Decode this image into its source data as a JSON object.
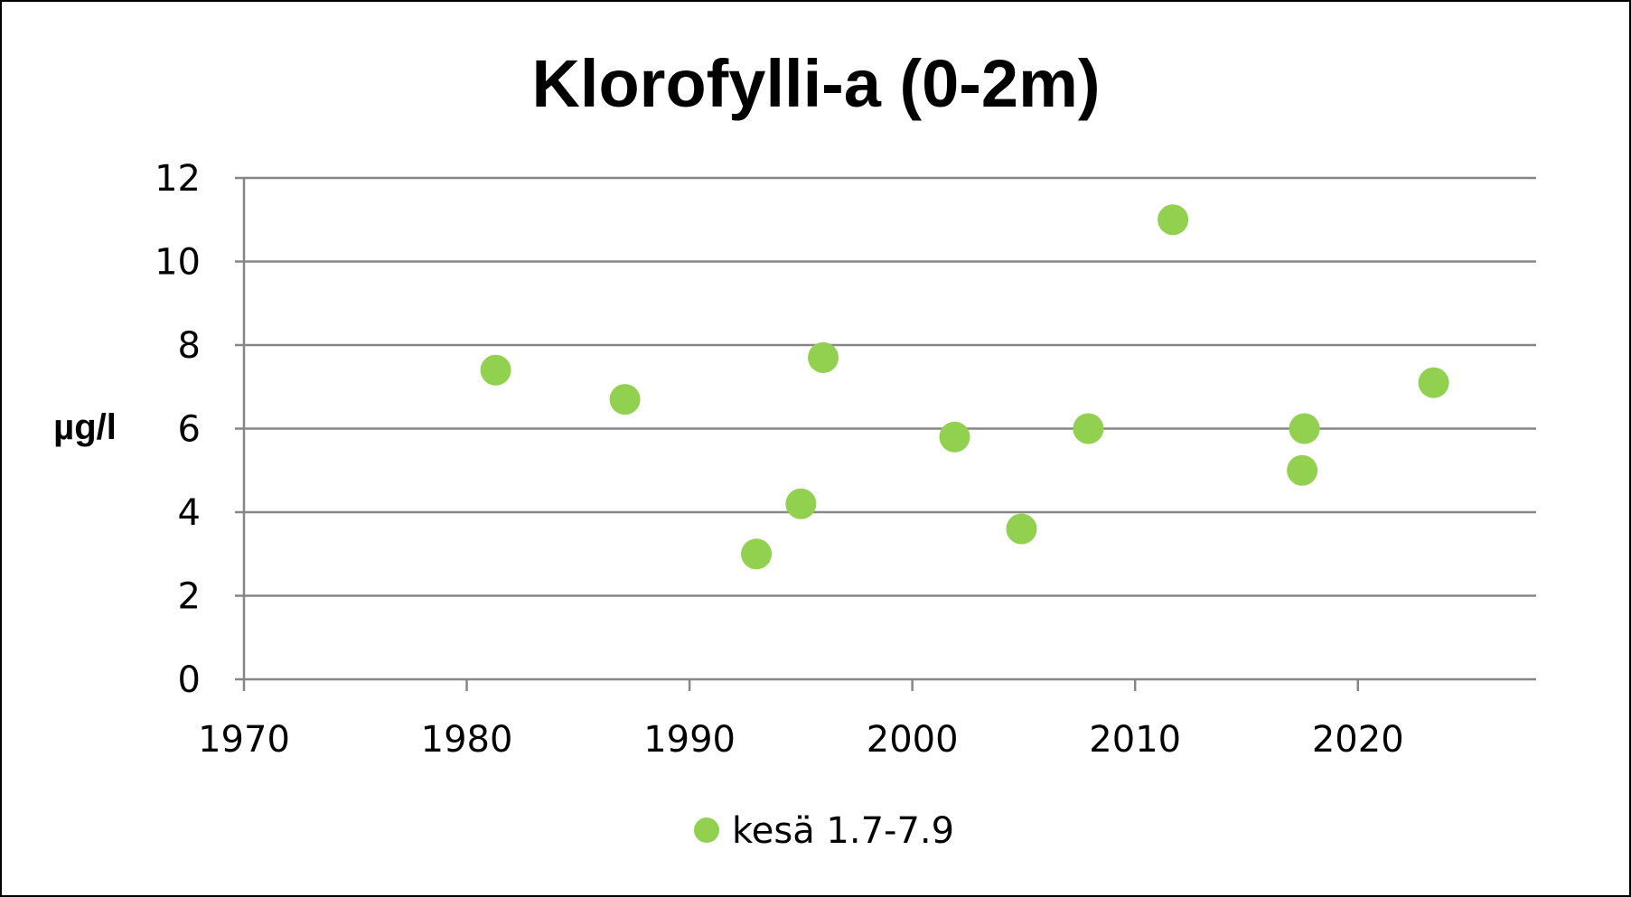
{
  "chart_data": {
    "type": "scatter",
    "title": "Klorofylli-a (0-2m)",
    "xlabel": "",
    "ylabel": "µg/l",
    "xlim": [
      1970,
      2028
    ],
    "ylim": [
      0,
      12
    ],
    "x_ticks": [
      1970,
      1980,
      1990,
      2000,
      2010,
      2020
    ],
    "y_ticks": [
      0,
      2,
      4,
      6,
      8,
      10,
      12
    ],
    "grid": "horizontal",
    "legend_position": "bottom",
    "series": [
      {
        "name": "kesä 1.7-7.9",
        "color": "#92d050",
        "points": [
          {
            "x": 1981.3,
            "y": 7.4
          },
          {
            "x": 1987.1,
            "y": 6.7
          },
          {
            "x": 1993.0,
            "y": 3.0
          },
          {
            "x": 1995.0,
            "y": 4.2
          },
          {
            "x": 1996.0,
            "y": 7.7
          },
          {
            "x": 2001.9,
            "y": 5.8
          },
          {
            "x": 2004.9,
            "y": 3.6
          },
          {
            "x": 2007.9,
            "y": 6.0
          },
          {
            "x": 2011.7,
            "y": 11.0
          },
          {
            "x": 2017.5,
            "y": 5.0
          },
          {
            "x": 2017.6,
            "y": 6.0
          },
          {
            "x": 2023.4,
            "y": 7.1
          }
        ]
      }
    ]
  }
}
